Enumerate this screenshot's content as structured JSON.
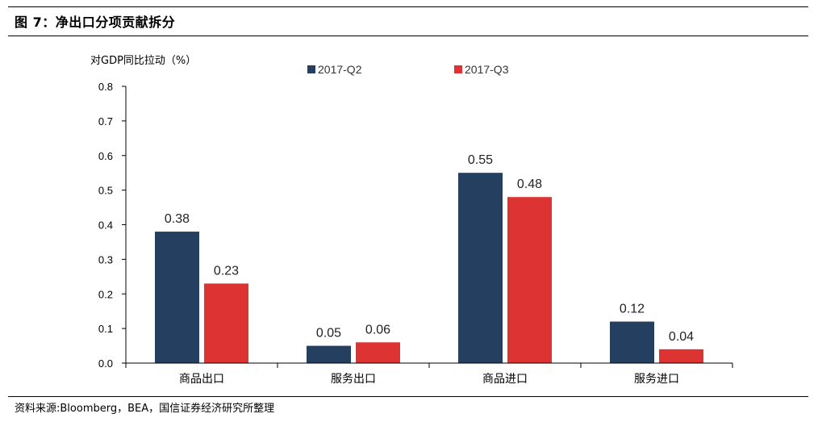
{
  "header": {
    "title": "图 7：净出口分项贡献拆分"
  },
  "footer": {
    "source": "资料来源:Bloomberg，BEA，国信证券经济研究所整理"
  },
  "colors": {
    "series_q2": "#243F60",
    "series_q3": "#DD3333"
  },
  "chart_data": {
    "type": "bar",
    "title": "",
    "ylabel": "对GDP同比拉动（%）",
    "xlabel": "",
    "categories": [
      "商品出口",
      "服务出口",
      "商品进口",
      "服务进口"
    ],
    "series": [
      {
        "name": "2017-Q2",
        "values": [
          0.38,
          0.05,
          0.55,
          0.12
        ]
      },
      {
        "name": "2017-Q3",
        "values": [
          0.23,
          0.06,
          0.48,
          0.04
        ]
      }
    ],
    "value_labels": [
      [
        "0.38",
        "0.05",
        "0.55",
        "0.12"
      ],
      [
        "0.23",
        "0.06",
        "0.48",
        "0.04"
      ]
    ],
    "ylim": [
      0,
      0.8
    ],
    "yticks": [
      "0.0",
      "0.1",
      "0.2",
      "0.3",
      "0.4",
      "0.5",
      "0.6",
      "0.7",
      "0.8"
    ],
    "grid": false,
    "legend_position": "top"
  }
}
